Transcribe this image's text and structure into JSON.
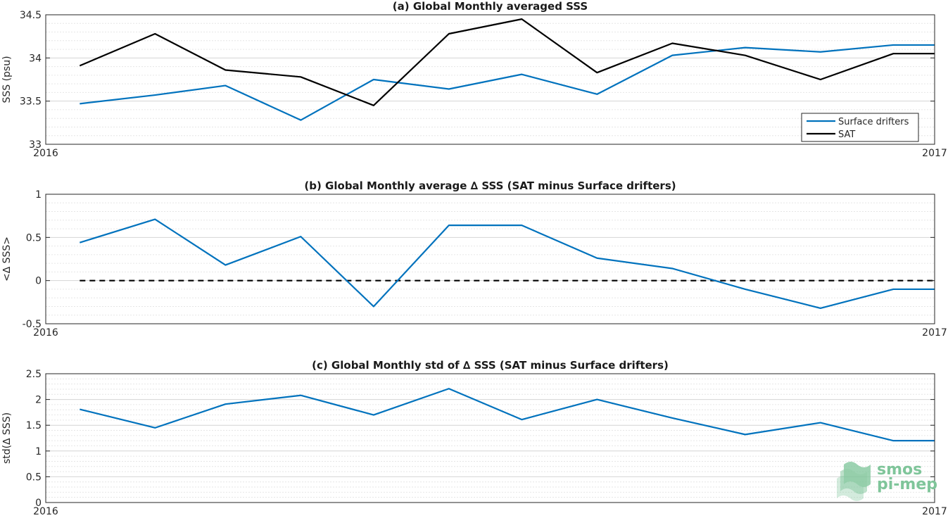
{
  "chart_data": [
    {
      "type": "line",
      "title": "(a) Global Monthly averaged SSS",
      "ylabel": "SSS (psu)",
      "xlabel": "",
      "xlim": [
        "2016",
        "2017"
      ],
      "x_tick_labels": [
        "2016",
        "2017"
      ],
      "ylim": [
        33,
        34.5
      ],
      "y_ticks": [
        33,
        33.5,
        34,
        34.5
      ],
      "y_tick_labels": [
        "33",
        "33.5",
        "34",
        "34.5"
      ],
      "grid": "dotted horizontal",
      "legend": "bottom-right",
      "x": [
        "2016-01-15",
        "2016-02-15",
        "2016-03-15",
        "2016-04-15",
        "2016-05-15",
        "2016-06-15",
        "2016-07-15",
        "2016-08-15",
        "2016-09-15",
        "2016-10-15",
        "2016-11-15",
        "2016-12-15",
        "2017-01-01"
      ],
      "series": [
        {
          "name": "Surface drifters",
          "color": "#0072bd",
          "values": [
            33.47,
            33.57,
            33.68,
            33.28,
            33.75,
            33.64,
            33.81,
            33.58,
            34.03,
            34.12,
            34.07,
            34.15,
            34.15
          ]
        },
        {
          "name": "SAT",
          "color": "#000000",
          "values": [
            33.91,
            34.28,
            33.86,
            33.78,
            33.45,
            34.28,
            34.45,
            33.83,
            34.17,
            34.03,
            33.75,
            34.05,
            34.05
          ]
        }
      ]
    },
    {
      "type": "line",
      "title": "(b) Global Monthly average ∆ SSS (SAT minus Surface drifters)",
      "ylabel": "<∆ SSS>",
      "xlabel": "",
      "xlim": [
        "2016",
        "2017"
      ],
      "x_tick_labels": [
        "2016",
        "2017"
      ],
      "ylim": [
        -0.5,
        1
      ],
      "y_ticks": [
        -0.5,
        0,
        0.5,
        1
      ],
      "y_tick_labels": [
        "-0.5",
        "0",
        "0.5",
        "1"
      ],
      "grid": "dotted horizontal",
      "reference_line": {
        "y": 0,
        "style": "dashed",
        "color": "#000000"
      },
      "x": [
        "2016-01-15",
        "2016-02-15",
        "2016-03-15",
        "2016-04-15",
        "2016-05-15",
        "2016-06-15",
        "2016-07-15",
        "2016-08-15",
        "2016-09-15",
        "2016-10-15",
        "2016-11-15",
        "2016-12-15",
        "2017-01-01"
      ],
      "series": [
        {
          "color": "#0072bd",
          "values": [
            0.44,
            0.71,
            0.18,
            0.51,
            -0.3,
            0.64,
            0.64,
            0.26,
            0.14,
            -0.1,
            -0.32,
            -0.1,
            -0.1
          ]
        }
      ]
    },
    {
      "type": "line",
      "title": "(c) Global Monthly std of ∆ SSS (SAT minus Surface drifters)",
      "ylabel": "std(∆ SSS)",
      "xlabel": "",
      "xlim": [
        "2016",
        "2017"
      ],
      "x_tick_labels": [
        "2016",
        "2017"
      ],
      "ylim": [
        0,
        2.5
      ],
      "y_ticks": [
        0,
        0.5,
        1,
        1.5,
        2,
        2.5
      ],
      "y_tick_labels": [
        "0",
        "0.5",
        "1",
        "1.5",
        "2",
        "2.5"
      ],
      "grid": "dotted horizontal",
      "x": [
        "2016-01-15",
        "2016-02-15",
        "2016-03-15",
        "2016-04-15",
        "2016-05-15",
        "2016-06-15",
        "2016-07-15",
        "2016-08-15",
        "2016-09-15",
        "2016-10-15",
        "2016-11-15",
        "2016-12-15",
        "2017-01-01"
      ],
      "series": [
        {
          "color": "#0072bd",
          "values": [
            1.81,
            1.45,
            1.91,
            2.08,
            1.7,
            2.21,
            1.61,
            2.0,
            1.64,
            1.32,
            1.55,
            1.2,
            1.2
          ]
        }
      ]
    }
  ],
  "logo": {
    "line1": "smos",
    "line2": "pi-mep",
    "icon": "smos-logo-icon",
    "color": "#7fc59a"
  }
}
